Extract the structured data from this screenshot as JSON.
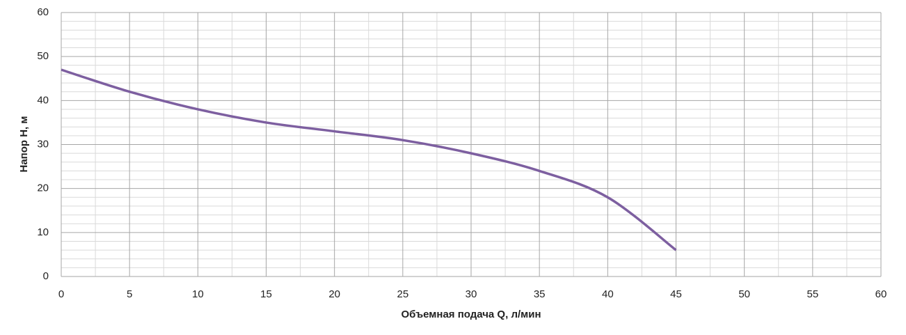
{
  "chart_data": {
    "type": "line",
    "x_label": "Объемная подача Q, л/мин",
    "y_label": "Напор Н, м",
    "x": [
      0,
      5,
      10,
      15,
      20,
      25,
      30,
      35,
      40,
      45
    ],
    "series": [
      {
        "color": "#7d5fa0",
        "values": [
          47,
          42,
          38,
          35,
          33,
          31,
          28,
          24,
          18,
          6
        ]
      }
    ],
    "xlim": [
      0,
      60
    ],
    "xticks": [
      0,
      5,
      10,
      15,
      20,
      25,
      30,
      35,
      40,
      45,
      50,
      55,
      60
    ],
    "ylim": [
      0,
      60
    ],
    "yticks": [
      0,
      10,
      20,
      30,
      40,
      50,
      60
    ],
    "grid": true
  }
}
